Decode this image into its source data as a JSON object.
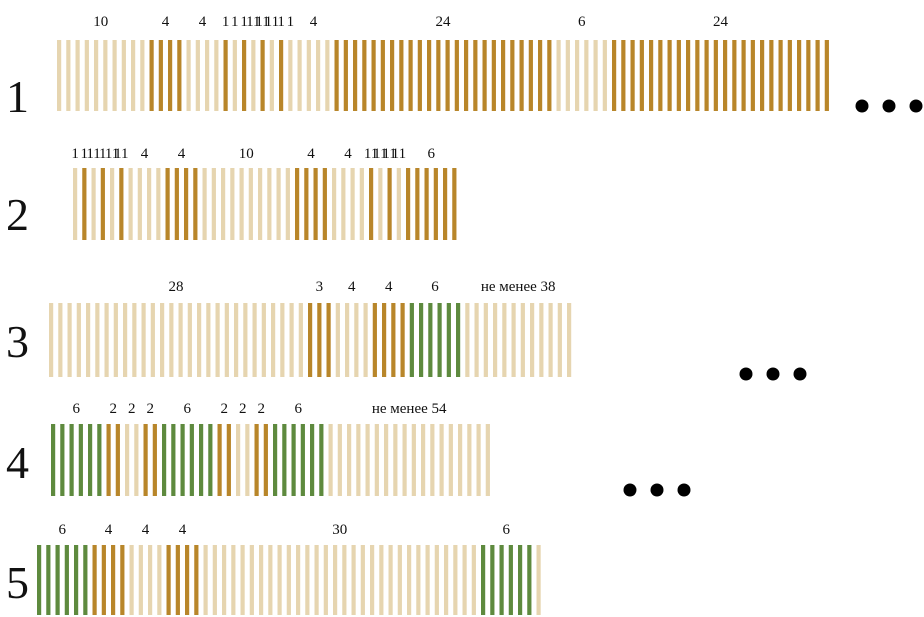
{
  "colors": {
    "light": "#e6d5b0",
    "gold": "#b8862a",
    "green": "#5e8a3e",
    "text": "#111111",
    "dot": "#000000"
  },
  "rows": [
    {
      "label": "1",
      "continues": true,
      "segments": [
        {
          "count": 10,
          "color": "light",
          "label": "10"
        },
        {
          "count": 4,
          "color": "gold",
          "label": "4"
        },
        {
          "count": 4,
          "color": "light",
          "label": "4"
        },
        {
          "count": 1,
          "color": "gold",
          "label": "1"
        },
        {
          "count": 1,
          "color": "light",
          "label": "1"
        },
        {
          "count": 1,
          "color": "gold",
          "label": "1"
        },
        {
          "count": 1,
          "color": "light",
          "label": "11"
        },
        {
          "count": 1,
          "color": "gold",
          "label": "11"
        },
        {
          "count": 1,
          "color": "light",
          "label": "11"
        },
        {
          "count": 1,
          "color": "gold",
          "label": "1"
        },
        {
          "count": 1,
          "color": "light",
          "label": "1"
        },
        {
          "count": 4,
          "color": "light",
          "label": "4"
        },
        {
          "count": 24,
          "color": "gold",
          "label": "24"
        },
        {
          "count": 6,
          "color": "light",
          "label": "6"
        },
        {
          "count": 24,
          "color": "gold",
          "label": "24"
        }
      ]
    },
    {
      "label": "2",
      "continues": false,
      "segments": [
        {
          "count": 1,
          "color": "light",
          "label": "1"
        },
        {
          "count": 1,
          "color": "gold",
          "label": "1"
        },
        {
          "count": 1,
          "color": "light",
          "label": "11"
        },
        {
          "count": 1,
          "color": "gold",
          "label": "1"
        },
        {
          "count": 1,
          "color": "light",
          "label": "11"
        },
        {
          "count": 1,
          "color": "gold",
          "label": "11"
        },
        {
          "count": 4,
          "color": "light",
          "label": "4"
        },
        {
          "count": 4,
          "color": "gold",
          "label": "4"
        },
        {
          "count": 10,
          "color": "light",
          "label": "10"
        },
        {
          "count": 4,
          "color": "gold",
          "label": "4"
        },
        {
          "count": 4,
          "color": "light",
          "label": "4"
        },
        {
          "count": 1,
          "color": "gold",
          "label": "11"
        },
        {
          "count": 1,
          "color": "light",
          "label": "11"
        },
        {
          "count": 1,
          "color": "gold",
          "label": "11"
        },
        {
          "count": 1,
          "color": "light",
          "label": "11"
        },
        {
          "count": 6,
          "color": "gold",
          "label": "6"
        }
      ]
    },
    {
      "label": "3",
      "continues": true,
      "segments": [
        {
          "count": 28,
          "color": "light",
          "label": "28"
        },
        {
          "count": 3,
          "color": "gold",
          "label": "3"
        },
        {
          "count": 4,
          "color": "light",
          "label": "4"
        },
        {
          "count": 4,
          "color": "gold",
          "label": "4"
        },
        {
          "count": 6,
          "color": "green",
          "label": "6"
        },
        {
          "count": 12,
          "color": "light",
          "label": "не менее 38"
        }
      ]
    },
    {
      "label": "4",
      "continues": true,
      "segments": [
        {
          "count": 6,
          "color": "green",
          "label": "6"
        },
        {
          "count": 2,
          "color": "gold",
          "label": "2"
        },
        {
          "count": 2,
          "color": "light",
          "label": "2"
        },
        {
          "count": 2,
          "color": "gold",
          "label": "2"
        },
        {
          "count": 6,
          "color": "green",
          "label": "6"
        },
        {
          "count": 2,
          "color": "gold",
          "label": "2"
        },
        {
          "count": 2,
          "color": "light",
          "label": "2"
        },
        {
          "count": 2,
          "color": "gold",
          "label": "2"
        },
        {
          "count": 6,
          "color": "green",
          "label": "6"
        },
        {
          "count": 18,
          "color": "light",
          "label": "не менее 54"
        }
      ]
    },
    {
      "label": "5",
      "continues": false,
      "segments": [
        {
          "count": 6,
          "color": "green",
          "label": "6"
        },
        {
          "count": 4,
          "color": "gold",
          "label": "4"
        },
        {
          "count": 4,
          "color": "light",
          "label": "4"
        },
        {
          "count": 4,
          "color": "gold",
          "label": "4"
        },
        {
          "count": 30,
          "color": "light",
          "label": "30"
        },
        {
          "count": 6,
          "color": "green",
          "label": "6"
        },
        {
          "count": 1,
          "color": "light",
          "label": ""
        }
      ]
    }
  ]
}
